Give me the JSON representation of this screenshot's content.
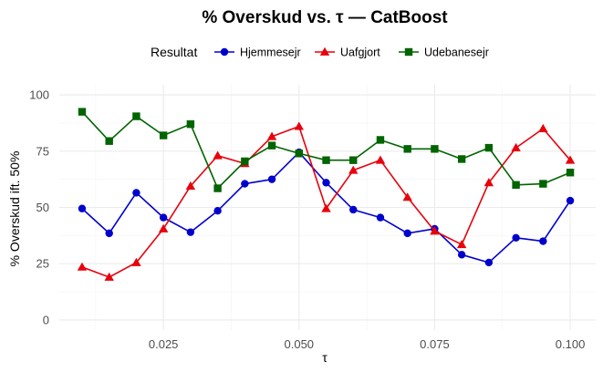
{
  "chart_data": {
    "type": "line",
    "title": "% Overskud vs. τ — CatBoost",
    "xlabel": "τ",
    "ylabel": "% Overskud ift. 50%",
    "legend_title": "Resultat",
    "legend_position": "top",
    "grid": true,
    "xlim": [
      0.0058,
      0.1047
    ],
    "ylim": [
      -4.5,
      104.5
    ],
    "x_ticks": [
      0.025,
      0.05,
      0.075,
      0.1
    ],
    "x_tick_labels": [
      "0.025",
      "0.050",
      "0.075",
      "0.100"
    ],
    "y_ticks": [
      0,
      25,
      50,
      75,
      100
    ],
    "y_tick_labels": [
      "0",
      "25",
      "50",
      "75",
      "100"
    ],
    "x": [
      0.01,
      0.015,
      0.02,
      0.025,
      0.03,
      0.035,
      0.04,
      0.045,
      0.05,
      0.055,
      0.06,
      0.065,
      0.07,
      0.075,
      0.08,
      0.085,
      0.09,
      0.095,
      0.1
    ],
    "series": [
      {
        "name": "Hjemmesejr",
        "color": "#0000cd",
        "marker": "circle",
        "values": [
          49.5,
          38.5,
          56.5,
          45.5,
          39,
          48.5,
          60.5,
          62.5,
          74.5,
          61,
          49,
          45.5,
          38.5,
          40.5,
          29,
          25.5,
          36.5,
          35,
          53
        ]
      },
      {
        "name": "Uafgjort",
        "color": "#e8000b",
        "marker": "triangle",
        "values": [
          23.5,
          19,
          25.5,
          40.5,
          59.5,
          73,
          69.5,
          81.5,
          86,
          49.5,
          66.5,
          71,
          54.5,
          39.5,
          33.5,
          61,
          76.5,
          85,
          71
        ]
      },
      {
        "name": "Udebanesejr",
        "color": "#006400",
        "marker": "square",
        "values": [
          92.5,
          79.5,
          90.5,
          82,
          87,
          58.5,
          70.5,
          77.5,
          74,
          71,
          71,
          80,
          76,
          76,
          71.5,
          76.5,
          60,
          60.5,
          65.5
        ]
      }
    ]
  }
}
